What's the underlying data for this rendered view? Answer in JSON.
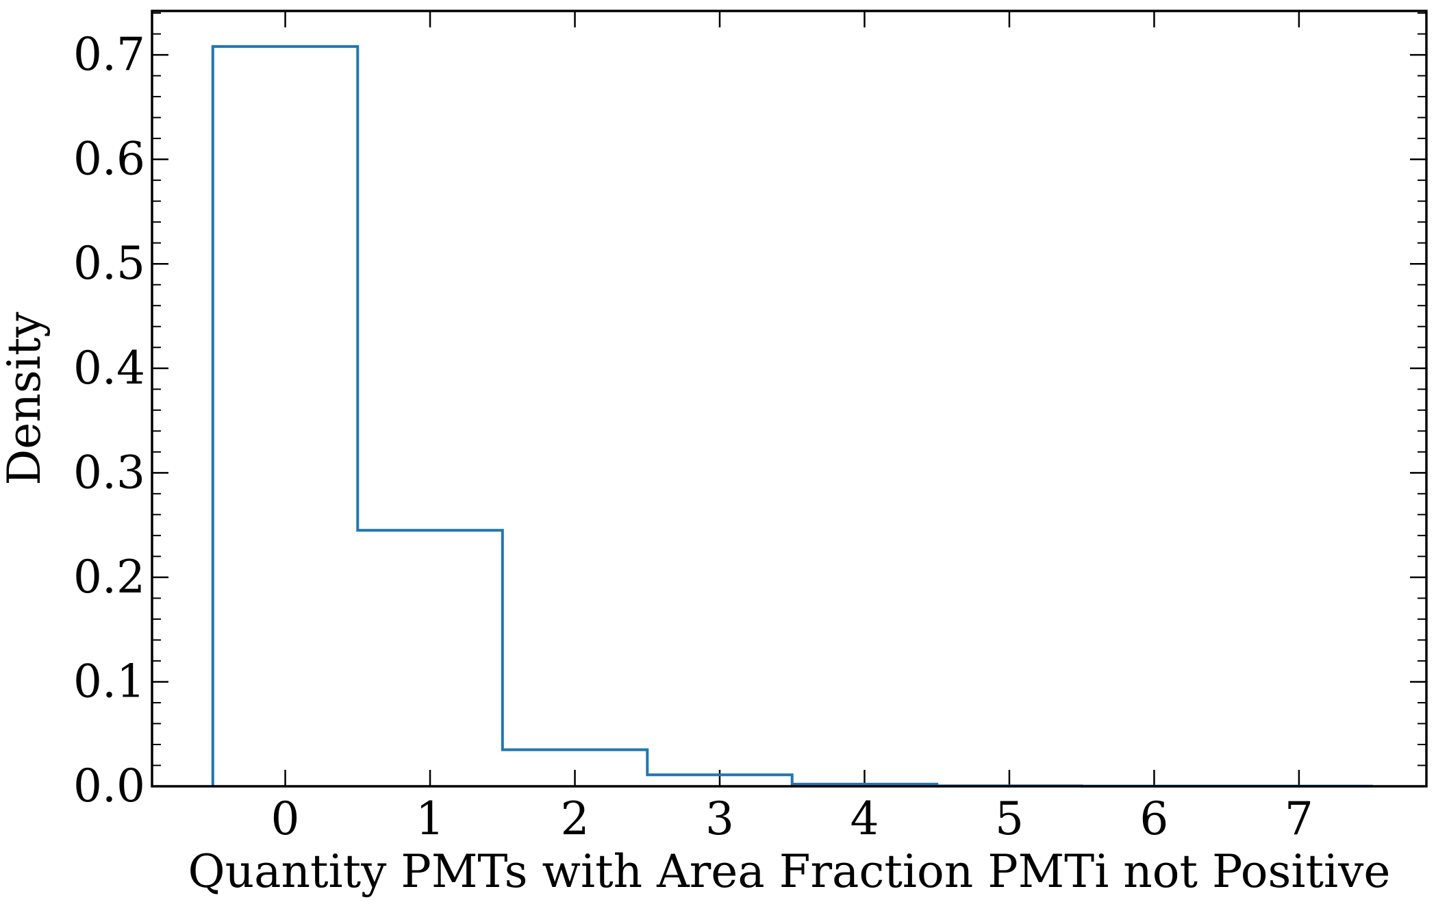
{
  "chart_data": {
    "type": "histogram-step",
    "title": "",
    "xlabel": "Quantity PMTs with Area Fraction PMTi not Positive",
    "ylabel": "Density",
    "xlim": [
      -0.92,
      7.88
    ],
    "ylim": [
      0.0,
      0.742
    ],
    "xticks": [
      0,
      1,
      2,
      3,
      4,
      5,
      6,
      7
    ],
    "yticks": [
      0.0,
      0.1,
      0.2,
      0.3,
      0.4,
      0.5,
      0.6,
      0.7
    ],
    "xtick_labels": [
      "0",
      "1",
      "2",
      "3",
      "4",
      "5",
      "6",
      "7"
    ],
    "ytick_labels": [
      "0.0",
      "0.1",
      "0.2",
      "0.3",
      "0.4",
      "0.5",
      "0.6",
      "0.7"
    ],
    "grid": false,
    "series": [
      {
        "color": "#1f77b4",
        "bin_edges": [
          -0.5,
          0.5,
          1.5,
          2.5,
          3.5,
          4.5,
          5.5,
          6.5,
          7.5
        ],
        "values": [
          0.708,
          0.245,
          0.035,
          0.011,
          0.002,
          0.0004,
          0.0002,
          0.0001
        ]
      }
    ]
  }
}
